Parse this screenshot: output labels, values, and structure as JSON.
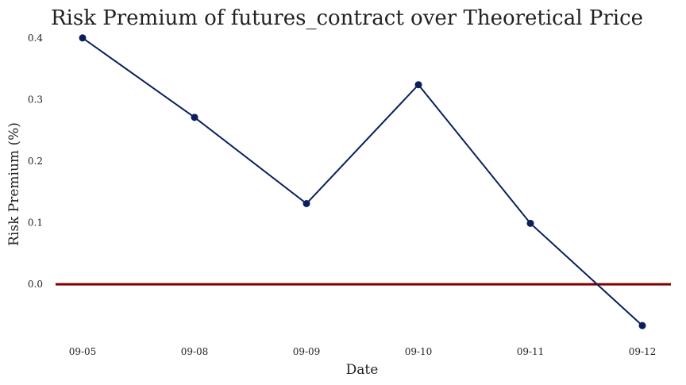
{
  "chart_data": {
    "type": "line",
    "title": "Risk Premium of futures_contract over Theoretical Price",
    "xlabel": "Date",
    "ylabel": "Risk Premium (%)",
    "categories": [
      "09-05",
      "09-08",
      "09-09",
      "09-10",
      "09-11",
      "09-12"
    ],
    "series": [
      {
        "values": [
          0.4,
          0.271,
          0.131,
          0.324,
          0.099,
          -0.067
        ],
        "color": "#0b1f5c",
        "marker": "circle"
      }
    ],
    "reference_line": {
      "y": 0.0,
      "color": "#7f0000"
    },
    "ylim": [
      -0.09,
      0.41
    ],
    "yticks": [
      "0.0",
      "0.1",
      "0.2",
      "0.3",
      "0.4"
    ],
    "grid": false,
    "legend": "none"
  }
}
